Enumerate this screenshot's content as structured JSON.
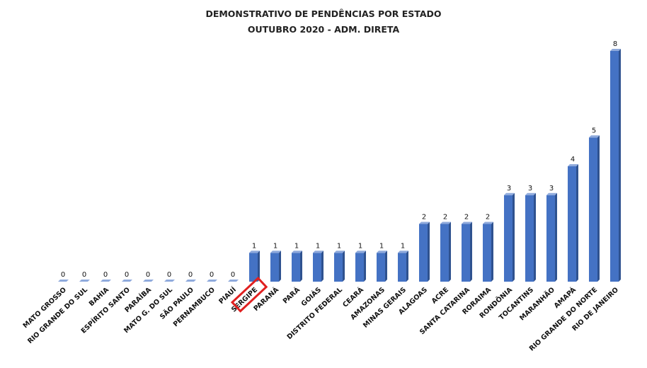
{
  "chart_data": {
    "type": "bar",
    "title": "DEMONSTRATIVO DE PENDÊNCIAS POR ESTADO",
    "subtitle": "OUTUBRO 2020 - ADM. DIRETA",
    "categories": [
      "MATO GROSSO",
      "RIO GRANDE DO SUL",
      "BAHIA",
      "ESPÍRITO SANTO",
      "PARAÍBA",
      "MATO G. DO SUL",
      "SÃO PAULO",
      "PERNAMBUCO",
      "PIAUÍ",
      "SERGIPE",
      "PARANÁ",
      "PARÁ",
      "GOIÁS",
      "DISTRITO FEDERAL",
      "CEARÁ",
      "AMAZONAS",
      "MINAS GERAIS",
      "ALAGOAS",
      "ACRE",
      "SANTA CATARINA",
      "RORAIMA",
      "RONDÔNIA",
      "TOCANTINS",
      "MARANHÃO",
      "AMAPÁ",
      "RIO GRANDE DO NORTE",
      "RIO DE JANEIRO"
    ],
    "values": [
      0,
      0,
      0,
      0,
      0,
      0,
      0,
      0,
      0,
      1,
      1,
      1,
      1,
      1,
      1,
      1,
      1,
      2,
      2,
      2,
      2,
      3,
      3,
      3,
      4,
      5,
      8
    ],
    "ylim": [
      0,
      8
    ],
    "grid": false,
    "highlighted_category": "SERGIPE",
    "colors": {
      "bar_front": "#4472C4",
      "bar_side": "#2F528F",
      "bar_top": "#8FAADC",
      "highlight_box": "#E02020"
    }
  }
}
